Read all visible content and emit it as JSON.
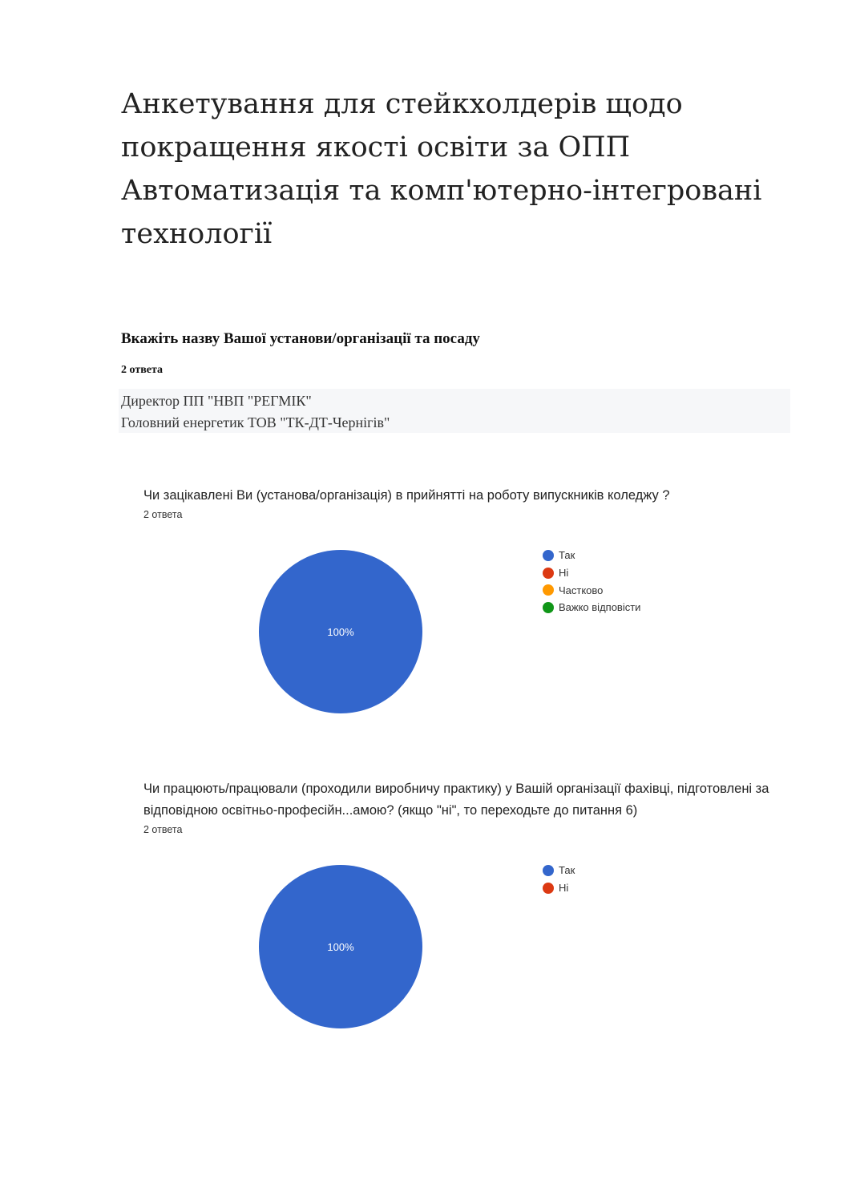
{
  "title": "Анкетування для стейкхолдерів щодо покращення якості освіти за ОПП Автоматизація та комп'ютерно-інтегровані технології",
  "question1": {
    "text": "Вкажіть назву Вашої установи/організації та посаду",
    "count": "2 ответа",
    "answers": [
      "Директор ПП \"НВП \"РЕГМІК\"",
      "Головний енергетик ТОВ \"ТК-ДТ-Чернігів\""
    ]
  },
  "chart_data": [
    {
      "type": "pie",
      "title": "Чи зацікавлені Ви (установа/організація) в прийнятті на роботу випускників коледжу ?",
      "subtitle": "2 ответа",
      "categories": [
        "Так",
        "Ні",
        "Частково",
        "Важко відповісти"
      ],
      "values": [
        100,
        0,
        0,
        0
      ],
      "colors": [
        "#3366cc",
        "#dc3912",
        "#ff9900",
        "#109618"
      ],
      "data_labels": [
        "100%"
      ],
      "legend": "right"
    },
    {
      "type": "pie",
      "title": "Чи працюють/працювали (проходили виробничу практику) у Вашій організації фахівці, підготовлені за відповідною освітньо-професійн...амою? (якщо \"ні\", то переходьте до питання 6)",
      "subtitle": "2 ответа",
      "categories": [
        "Так",
        "Ні"
      ],
      "values": [
        100,
        0
      ],
      "colors": [
        "#3366cc",
        "#dc3912"
      ],
      "data_labels": [
        "100%"
      ],
      "legend": "right"
    }
  ]
}
